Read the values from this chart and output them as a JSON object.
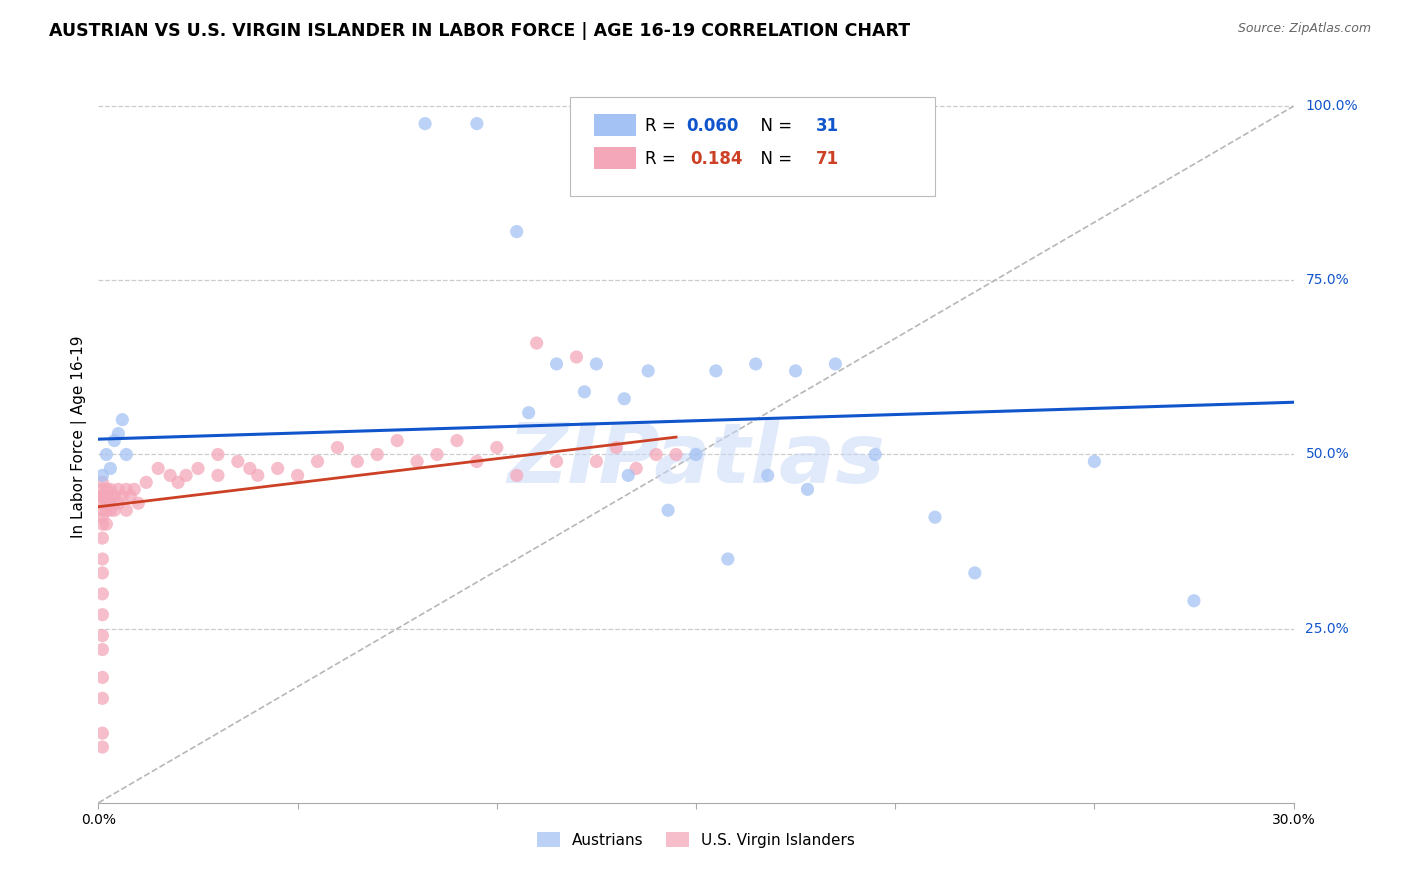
{
  "title": "AUSTRIAN VS U.S. VIRGIN ISLANDER IN LABOR FORCE | AGE 16-19 CORRELATION CHART",
  "source": "Source: ZipAtlas.com",
  "ylabel": "In Labor Force | Age 16-19",
  "xlim": [
    0.0,
    0.3
  ],
  "ylim": [
    0.0,
    1.05
  ],
  "ytick_vals": [
    0.25,
    0.5,
    0.75,
    1.0
  ],
  "ytick_labels": [
    "25.0%",
    "50.0%",
    "75.0%",
    "100.0%"
  ],
  "xtick_vals": [
    0.0,
    0.05,
    0.1,
    0.15,
    0.2,
    0.25,
    0.3
  ],
  "xtick_labels": [
    "0.0%",
    "",
    "",
    "",
    "",
    "",
    "30.0%"
  ],
  "blue_color": "#a4c2f4",
  "pink_color": "#f4a7b9",
  "blue_line_color": "#1155cc",
  "pink_line_color": "#cc4125",
  "diagonal_color": "#b7b7b7",
  "R_blue": 0.06,
  "N_blue": 31,
  "R_pink": 0.184,
  "N_pink": 71,
  "blue_scatter_x": [
    0.001,
    0.002,
    0.003,
    0.004,
    0.005,
    0.006,
    0.007,
    0.082,
    0.095,
    0.105,
    0.108,
    0.115,
    0.122,
    0.125,
    0.132,
    0.138,
    0.15,
    0.155,
    0.165,
    0.175,
    0.185,
    0.195,
    0.21,
    0.22,
    0.25,
    0.275,
    0.133,
    0.143,
    0.158,
    0.168,
    0.178
  ],
  "blue_scatter_y": [
    0.47,
    0.5,
    0.48,
    0.52,
    0.53,
    0.55,
    0.5,
    0.975,
    0.975,
    0.82,
    0.56,
    0.63,
    0.59,
    0.63,
    0.58,
    0.62,
    0.5,
    0.62,
    0.63,
    0.62,
    0.63,
    0.5,
    0.41,
    0.33,
    0.49,
    0.29,
    0.47,
    0.42,
    0.35,
    0.47,
    0.45
  ],
  "pink_scatter_x": [
    0.001,
    0.001,
    0.001,
    0.001,
    0.001,
    0.001,
    0.001,
    0.001,
    0.001,
    0.001,
    0.001,
    0.001,
    0.001,
    0.001,
    0.001,
    0.001,
    0.001,
    0.001,
    0.001,
    0.001,
    0.002,
    0.002,
    0.002,
    0.002,
    0.002,
    0.003,
    0.003,
    0.003,
    0.003,
    0.004,
    0.004,
    0.005,
    0.005,
    0.006,
    0.007,
    0.007,
    0.008,
    0.009,
    0.01,
    0.012,
    0.015,
    0.018,
    0.02,
    0.022,
    0.025,
    0.03,
    0.03,
    0.035,
    0.038,
    0.04,
    0.045,
    0.05,
    0.055,
    0.06,
    0.065,
    0.07,
    0.075,
    0.08,
    0.085,
    0.09,
    0.095,
    0.1,
    0.105,
    0.11,
    0.115,
    0.12,
    0.125,
    0.13,
    0.135,
    0.14,
    0.145
  ],
  "pink_scatter_y": [
    0.44,
    0.45,
    0.46,
    0.44,
    0.43,
    0.44,
    0.42,
    0.41,
    0.4,
    0.38,
    0.35,
    0.33,
    0.3,
    0.27,
    0.24,
    0.22,
    0.18,
    0.15,
    0.1,
    0.08,
    0.44,
    0.43,
    0.45,
    0.42,
    0.4,
    0.44,
    0.43,
    0.45,
    0.42,
    0.44,
    0.42,
    0.43,
    0.45,
    0.44,
    0.45,
    0.42,
    0.44,
    0.45,
    0.43,
    0.46,
    0.48,
    0.47,
    0.46,
    0.47,
    0.48,
    0.5,
    0.47,
    0.49,
    0.48,
    0.47,
    0.48,
    0.47,
    0.49,
    0.51,
    0.49,
    0.5,
    0.52,
    0.49,
    0.5,
    0.52,
    0.49,
    0.51,
    0.47,
    0.66,
    0.49,
    0.64,
    0.49,
    0.51,
    0.48,
    0.5,
    0.5
  ],
  "watermark": "ZIPatlas",
  "watermark_color": "#c9daf8",
  "background_color": "#ffffff",
  "grid_color": "#cccccc",
  "blue_trend_x0": 0.0,
  "blue_trend_y0": 0.522,
  "blue_trend_x1": 0.3,
  "blue_trend_y1": 0.575,
  "pink_trend_x0": 0.0,
  "pink_trend_y0": 0.425,
  "pink_trend_x1": 0.145,
  "pink_trend_y1": 0.525
}
